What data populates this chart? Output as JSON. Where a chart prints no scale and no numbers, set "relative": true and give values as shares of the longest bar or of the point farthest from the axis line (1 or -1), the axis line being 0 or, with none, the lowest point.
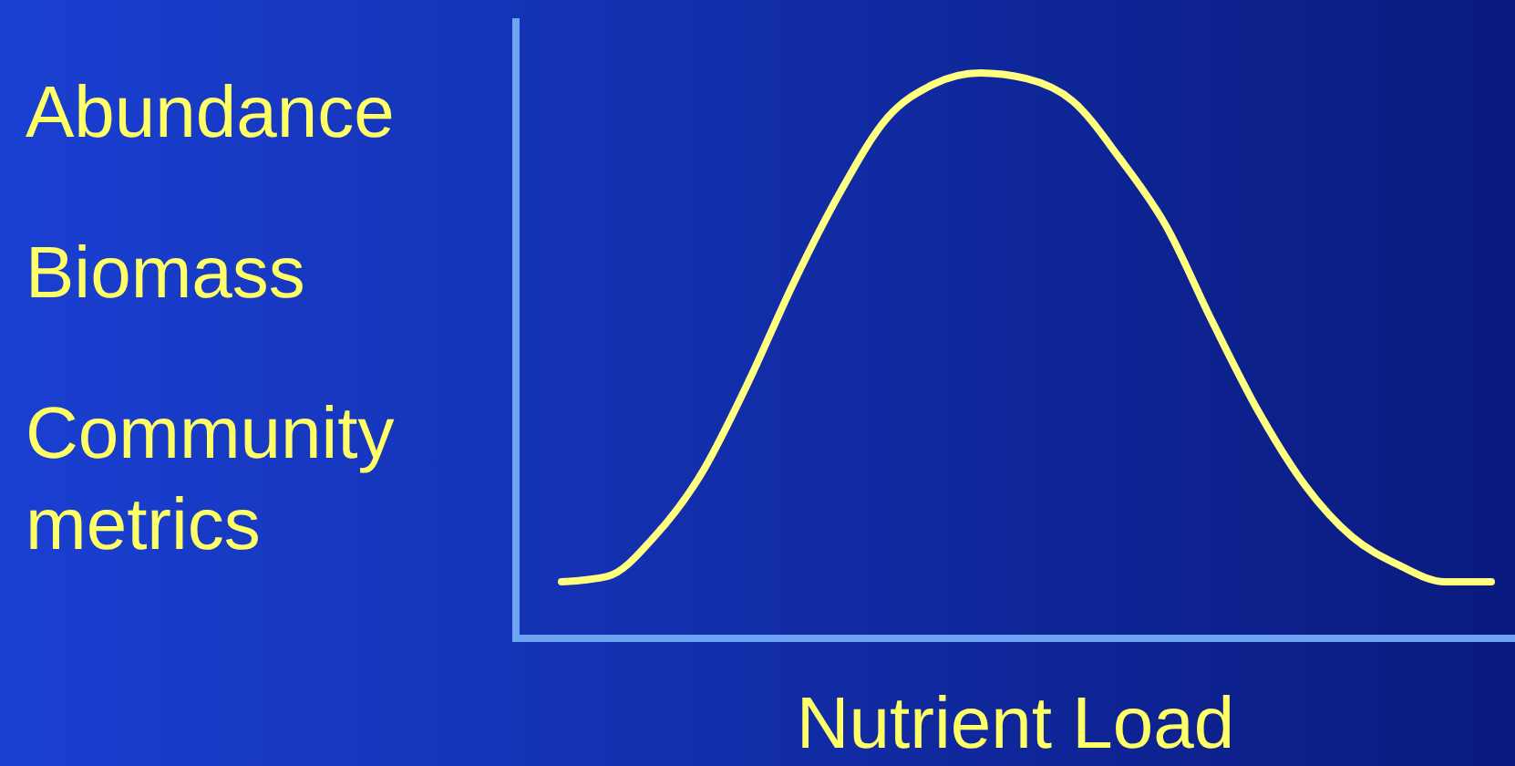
{
  "chart_data": {
    "type": "line",
    "relative": true,
    "ylabel": "Abundance\nBiomass\nCommunity metrics",
    "xlabel": "Nutrient Load",
    "categories": [
      null,
      null,
      null,
      null,
      null,
      null,
      null,
      null,
      null,
      null,
      null,
      null,
      null,
      null,
      null,
      null,
      null,
      null,
      null,
      null,
      null
    ],
    "color": "#ffff80",
    "values": [
      0.1,
      0.11,
      0.18,
      0.29,
      0.45,
      0.63,
      0.79,
      0.92,
      0.98,
      1.0,
      0.99,
      0.95,
      0.85,
      0.73,
      0.56,
      0.4,
      0.27,
      0.18,
      0.13,
      0.1,
      0.1
    ]
  }
}
